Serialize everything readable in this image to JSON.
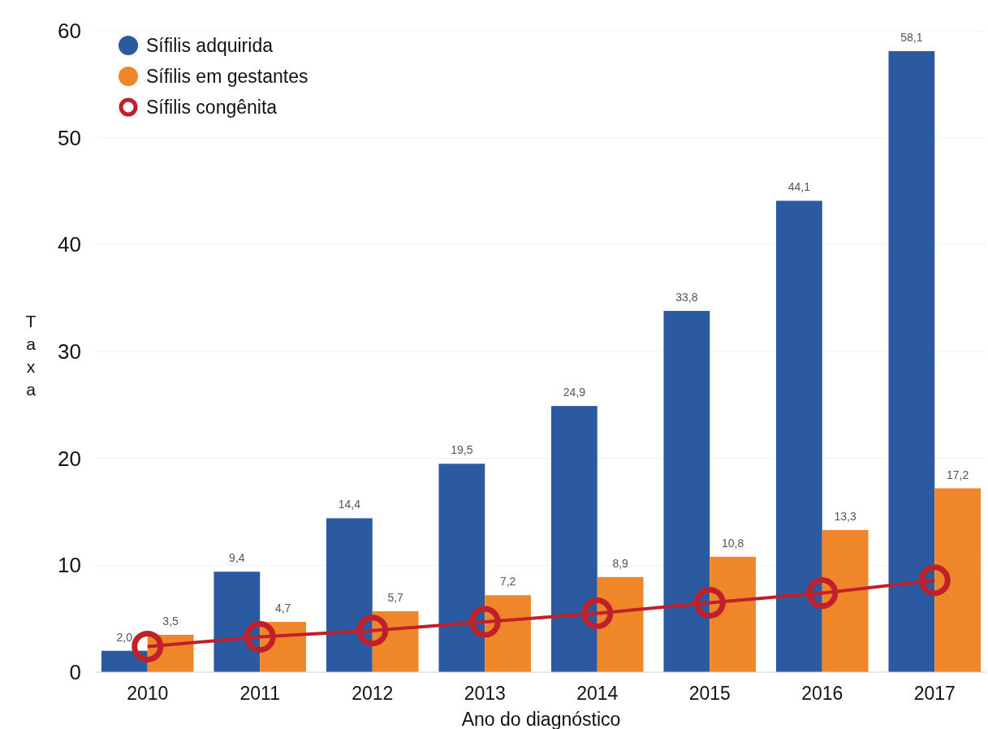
{
  "chart_data": {
    "type": "bar",
    "xlabel": "Ano do diagnóstico",
    "ylabel": "Taxa",
    "categories": [
      "2010",
      "2011",
      "2012",
      "2013",
      "2014",
      "2015",
      "2016",
      "2017"
    ],
    "series": [
      {
        "name": "Sífilis adquirida",
        "color": "#2c5aa0",
        "values": [
          2.0,
          9.4,
          14.4,
          19.5,
          24.9,
          33.8,
          44.1,
          58.1
        ],
        "value_labels": [
          "2,0",
          "9,4",
          "14,4",
          "19,5",
          "24,9",
          "33,8",
          "44,1",
          "58,1"
        ]
      },
      {
        "name": "Sífilis em gestantes",
        "color": "#f0862a",
        "values": [
          3.5,
          4.7,
          5.7,
          7.2,
          8.9,
          10.8,
          13.3,
          17.2
        ],
        "value_labels": [
          "3,5",
          "4,7",
          "5,7",
          "7,2",
          "8,9",
          "10,8",
          "13,3",
          "17,2"
        ]
      },
      {
        "name": "Sífilis congênita",
        "type": "line",
        "color": "#c0202a",
        "values": [
          2.4,
          3.3,
          3.9,
          4.7,
          5.5,
          6.5,
          7.4,
          8.6
        ],
        "marker": "circle"
      }
    ],
    "ylim": [
      0,
      60
    ],
    "yticks": [
      0,
      10,
      20,
      30,
      40,
      50,
      60
    ],
    "grid": "y",
    "legend": "top left"
  }
}
